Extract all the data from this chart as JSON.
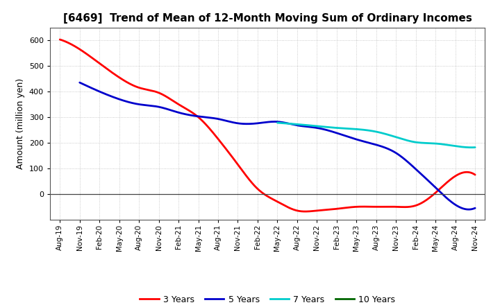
{
  "title": "[6469]  Trend of Mean of 12-Month Moving Sum of Ordinary Incomes",
  "ylabel": "Amount (million yen)",
  "background_color": "#ffffff",
  "grid_color": "#aaaaaa",
  "x_labels": [
    "Aug-19",
    "Nov-19",
    "Feb-20",
    "May-20",
    "Aug-20",
    "Nov-20",
    "Feb-21",
    "May-21",
    "Aug-21",
    "Nov-21",
    "Feb-22",
    "May-22",
    "Aug-22",
    "Nov-22",
    "Feb-23",
    "May-23",
    "Aug-23",
    "Nov-23",
    "Feb-24",
    "May-24",
    "Aug-24",
    "Nov-24"
  ],
  "ylim": [
    -100,
    650
  ],
  "yticks": [
    0,
    100,
    200,
    300,
    400,
    500,
    600
  ],
  "series": {
    "3 Years": {
      "color": "#ff0000",
      "values": [
        603,
        565,
        510,
        455,
        415,
        395,
        350,
        300,
        215,
        115,
        20,
        -30,
        -65,
        -65,
        -58,
        -50,
        -50,
        -50,
        -45,
        5,
        70,
        75
      ]
    },
    "5 Years": {
      "color": "#0000cc",
      "values": [
        null,
        435,
        400,
        370,
        350,
        340,
        318,
        303,
        293,
        276,
        276,
        282,
        268,
        258,
        238,
        213,
        192,
        160,
        97,
        25,
        -42,
        -55
      ]
    },
    "7 Years": {
      "color": "#00cccc",
      "values": [
        null,
        null,
        null,
        null,
        null,
        null,
        null,
        null,
        null,
        null,
        null,
        278,
        272,
        265,
        258,
        253,
        243,
        222,
        202,
        197,
        187,
        182
      ]
    },
    "10 Years": {
      "color": "#006600",
      "values": [
        null,
        null,
        null,
        null,
        null,
        null,
        null,
        null,
        null,
        null,
        null,
        null,
        null,
        null,
        null,
        null,
        null,
        null,
        null,
        null,
        null,
        null
      ]
    }
  },
  "legend_labels": [
    "3 Years",
    "5 Years",
    "7 Years",
    "10 Years"
  ],
  "legend_colors": [
    "#ff0000",
    "#0000cc",
    "#00cccc",
    "#006600"
  ],
  "title_fontsize": 11,
  "ylabel_fontsize": 9,
  "tick_fontsize": 8,
  "xtick_fontsize": 7.5,
  "linewidth": 2.0
}
